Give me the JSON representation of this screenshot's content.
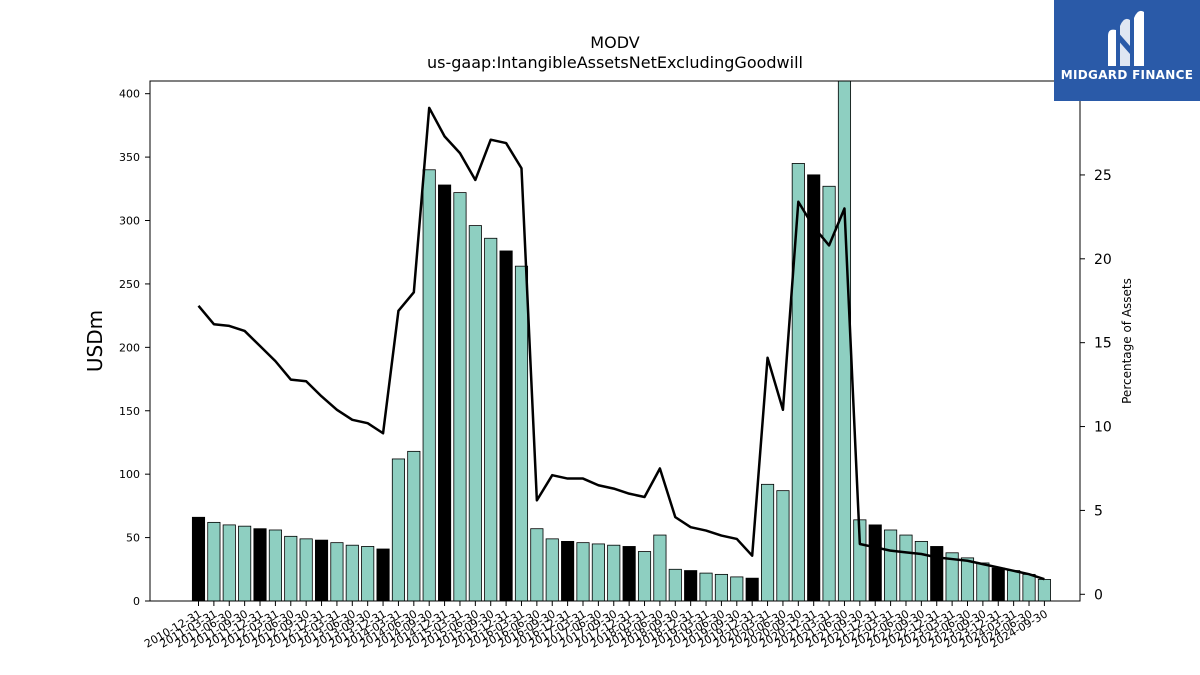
{
  "chart_data": {
    "type": "bar",
    "title": "MODV",
    "subtitle": "us-gaap:IntangibleAssetsNetExcludingGoodwill",
    "ylabel": "USDm",
    "y2label": "Percentage of Assets",
    "ylim": [
      0,
      410
    ],
    "y2lim": [
      -0.4,
      30.6
    ],
    "yticks": [
      0,
      50,
      100,
      150,
      200,
      250,
      300,
      350,
      400
    ],
    "y2ticks": [
      0,
      5,
      10,
      15,
      20,
      25
    ],
    "categories": [
      "2010-12-31",
      "2011-03-31",
      "2011-06-30",
      "2011-09-30",
      "2011-12-31",
      "2012-03-31",
      "2012-06-30",
      "2012-09-30",
      "2012-12-31",
      "2013-03-31",
      "2013-06-30",
      "2013-09-30",
      "2013-12-31",
      "2014-03-31",
      "2014-06-30",
      "2014-09-30",
      "2014-12-31",
      "2015-03-31",
      "2015-06-30",
      "2015-09-30",
      "2015-12-31",
      "2016-03-31",
      "2016-06-30",
      "2016-09-30",
      "2016-12-31",
      "2017-03-31",
      "2017-06-30",
      "2017-09-30",
      "2017-12-31",
      "2018-03-31",
      "2018-06-30",
      "2018-09-30",
      "2018-12-31",
      "2019-03-31",
      "2019-06-30",
      "2019-09-30",
      "2019-12-31",
      "2020-03-31",
      "2020-06-30",
      "2020-09-30",
      "2020-12-31",
      "2021-03-31",
      "2021-06-30",
      "2021-09-30",
      "2021-12-31",
      "2022-03-31",
      "2022-06-30",
      "2022-09-30",
      "2022-12-31",
      "2023-03-31",
      "2023-06-30",
      "2023-09-30",
      "2023-12-31",
      "2024-03-31",
      "2024-06-30",
      "2024-09-30"
    ],
    "tick_labels": [
      "2010-12-31",
      "2011-03-31",
      "2011-06-30",
      "2011-09-30",
      "2011-12-31",
      "2012-03-31",
      "2012-06-30",
      "2012-09-30",
      "2012-12-31",
      "2013-03-31",
      "2013-06-30",
      "2013-09-30",
      "2013-12-31",
      "2014-03-31",
      "2014-06-30",
      "2014-09-30",
      "2014-12-31",
      "2015-03-31",
      "2015-06-30",
      "2015-09-30",
      "2015-12-31",
      "2016-03-31",
      "2016-06-30",
      "2016-09-30",
      "2016-12-31",
      "2017-03-31",
      "2017-06-30",
      "2017-09-30",
      "2017-12-31",
      "2018-03-31",
      "2018-06-30",
      "2018-09-30",
      "2018-12-31",
      "2019-03-31",
      "2019-06-30",
      "2019-09-30",
      "2019-12-31",
      "2020-03-31",
      "2020-06-30",
      "2020-09-30",
      "2020-12-31",
      "2021-03-31",
      "2021-06-30",
      "2021-09-30",
      "2021-12-31",
      "2022-03-31",
      "2022-06-30",
      "2022-09-30",
      "2022-12-31",
      "2023-03-31",
      "2023-06-30",
      "2023-09-30",
      "2023-12-31",
      "2024-03-31",
      "2024-06-30",
      "2024-09-30"
    ],
    "series": [
      {
        "kind": "bar",
        "values": [
          66,
          62,
          60,
          59,
          57,
          56,
          51,
          49,
          48,
          46,
          44,
          43,
          41,
          112,
          118,
          340,
          328,
          322,
          296,
          286,
          276,
          264,
          57,
          49,
          47,
          46,
          45,
          44,
          43,
          39,
          52,
          25,
          24,
          22,
          21,
          19,
          18,
          92,
          87,
          345,
          336,
          327,
          414,
          64,
          60,
          56,
          52,
          47,
          43,
          38,
          34,
          30,
          26,
          24,
          21,
          17
        ],
        "highlight_every": 4,
        "highlight_color": "#000000",
        "color": "#8ecfc1"
      },
      {
        "kind": "line",
        "axis": "right",
        "color": "#000000",
        "values": [
          17.2,
          16.1,
          16.0,
          15.7,
          14.8,
          13.9,
          12.8,
          12.7,
          11.8,
          11.0,
          10.4,
          10.2,
          9.6,
          16.9,
          18.0,
          29.0,
          27.3,
          26.3,
          24.7,
          27.1,
          26.9,
          25.4,
          5.6,
          7.1,
          6.9,
          6.9,
          6.5,
          6.3,
          6.0,
          5.8,
          7.5,
          4.6,
          4.0,
          3.8,
          3.5,
          3.3,
          2.3,
          14.1,
          11.0,
          23.4,
          21.9,
          20.8,
          23.0,
          3.0,
          2.8,
          2.6,
          2.5,
          2.4,
          2.2,
          2.1,
          2.0,
          1.8,
          1.6,
          1.4,
          1.2,
          0.9
        ]
      }
    ],
    "grid": false
  },
  "logo": {
    "brand": "MIDGARD FINANCE",
    "background": "#2a5aa8",
    "text_color": "#ffffff"
  }
}
